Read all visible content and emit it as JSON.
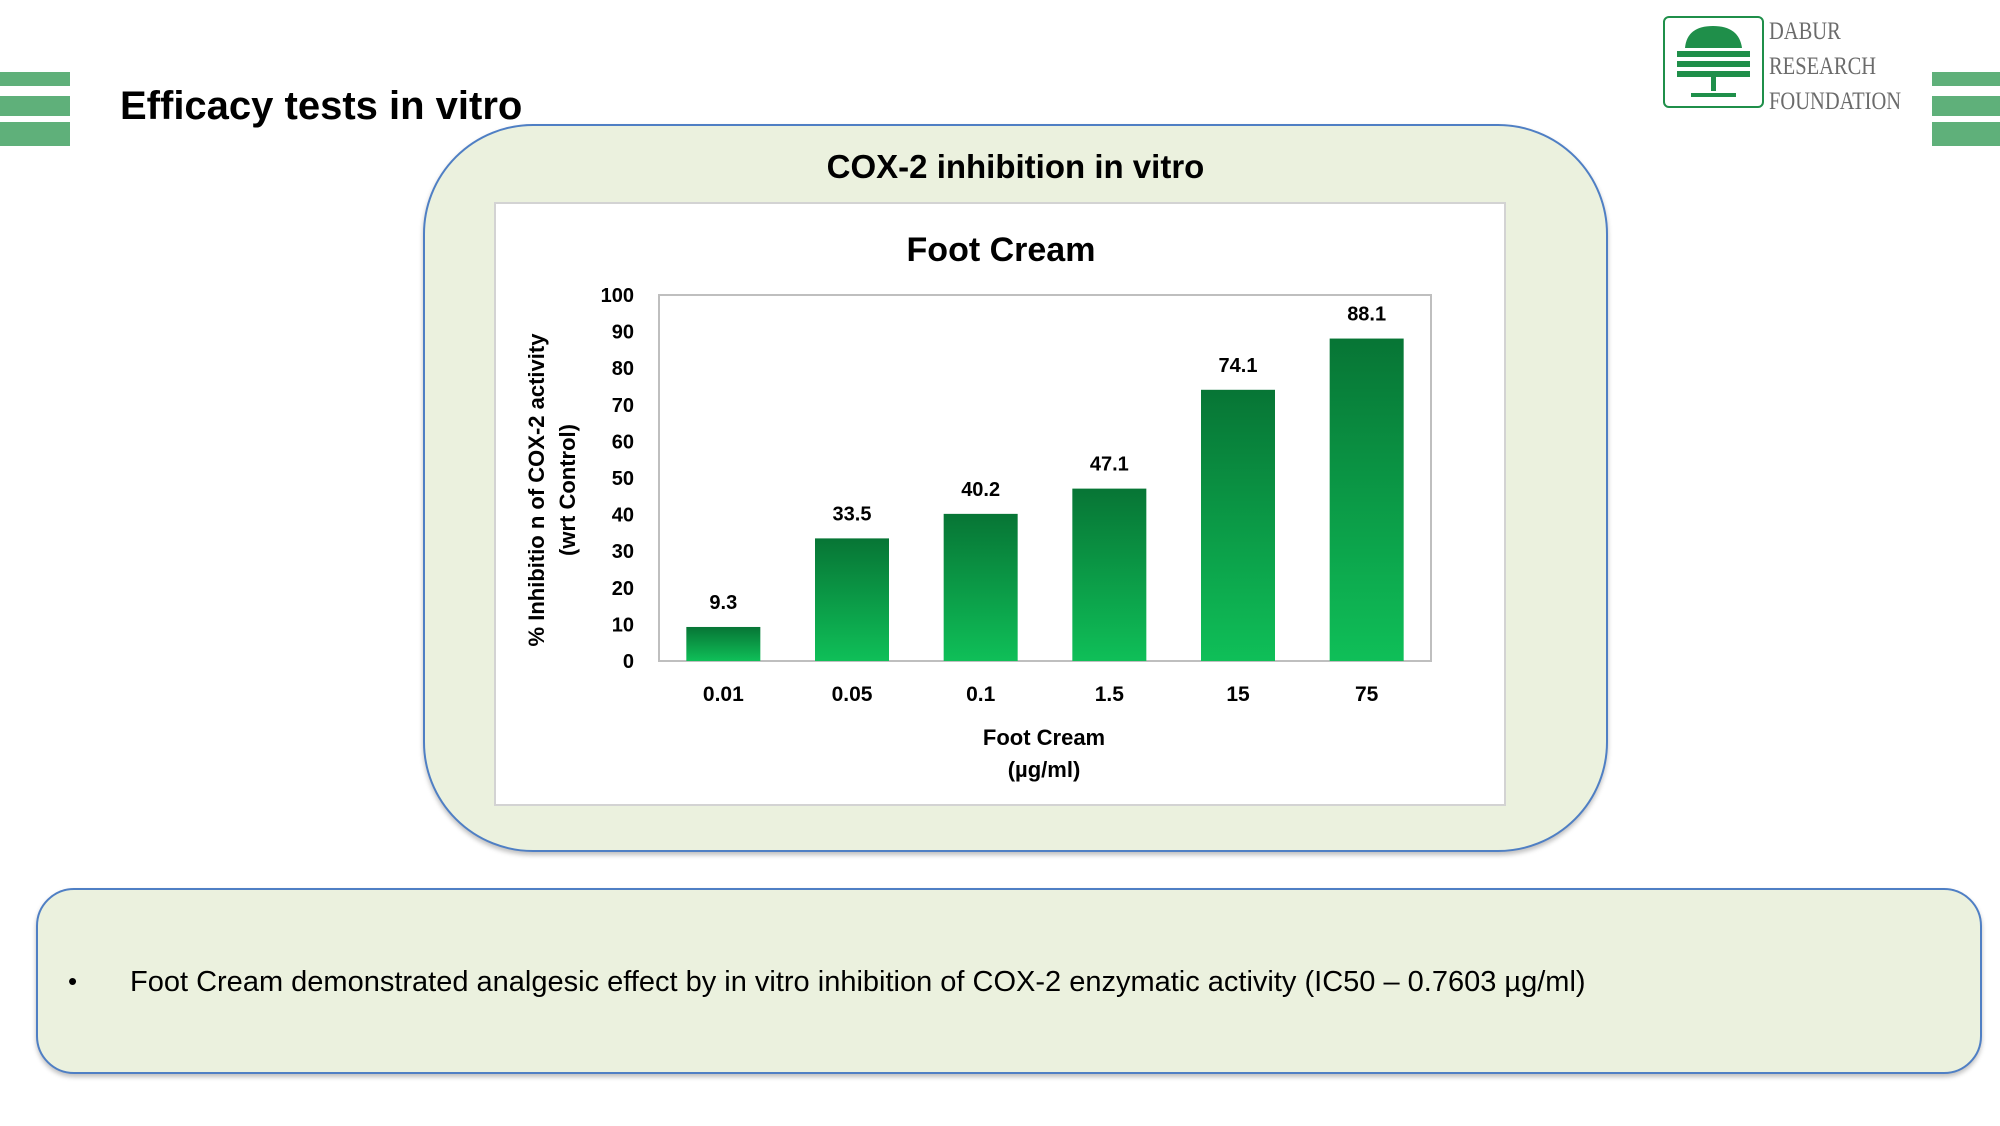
{
  "slide": {
    "title": "Efficacy tests in vitro",
    "logo": {
      "icon": "tree-icon",
      "lines": [
        "DABUR",
        "RESEARCH",
        "FOUNDATION"
      ]
    },
    "chart_panel_title": "COX-2 inhibition in vitro",
    "note": "Foot Cream demonstrated analgesic effect by in vitro inhibition of COX-2 enzymatic activity (IC50 – 0.7603 µg/ml)",
    "bullet": "•"
  },
  "colors": {
    "accent_stripes": "#5fb07a",
    "panel_fill": "#ebf1de",
    "panel_border": "#4f7fc4",
    "logo_green": "#1f8f4a",
    "bar_top": "#077535",
    "bar_bottom": "#0fbf58"
  },
  "chart_data": {
    "type": "bar",
    "title": "Foot Cream",
    "xlabel": [
      "Foot Cream",
      "(µg/ml)"
    ],
    "ylabel": [
      "% Inhibitio n of COX-2 activity",
      "(wrt Control)"
    ],
    "categories": [
      "0.01",
      "0.05",
      "0.1",
      "1.5",
      "15",
      "75"
    ],
    "values": [
      9.3,
      33.5,
      40.2,
      47.1,
      74.1,
      88.1
    ],
    "ylim": [
      0,
      100
    ],
    "yticks": [
      0,
      10,
      20,
      30,
      40,
      50,
      60,
      70,
      80,
      90,
      100
    ],
    "grid": false,
    "legend": "none"
  }
}
